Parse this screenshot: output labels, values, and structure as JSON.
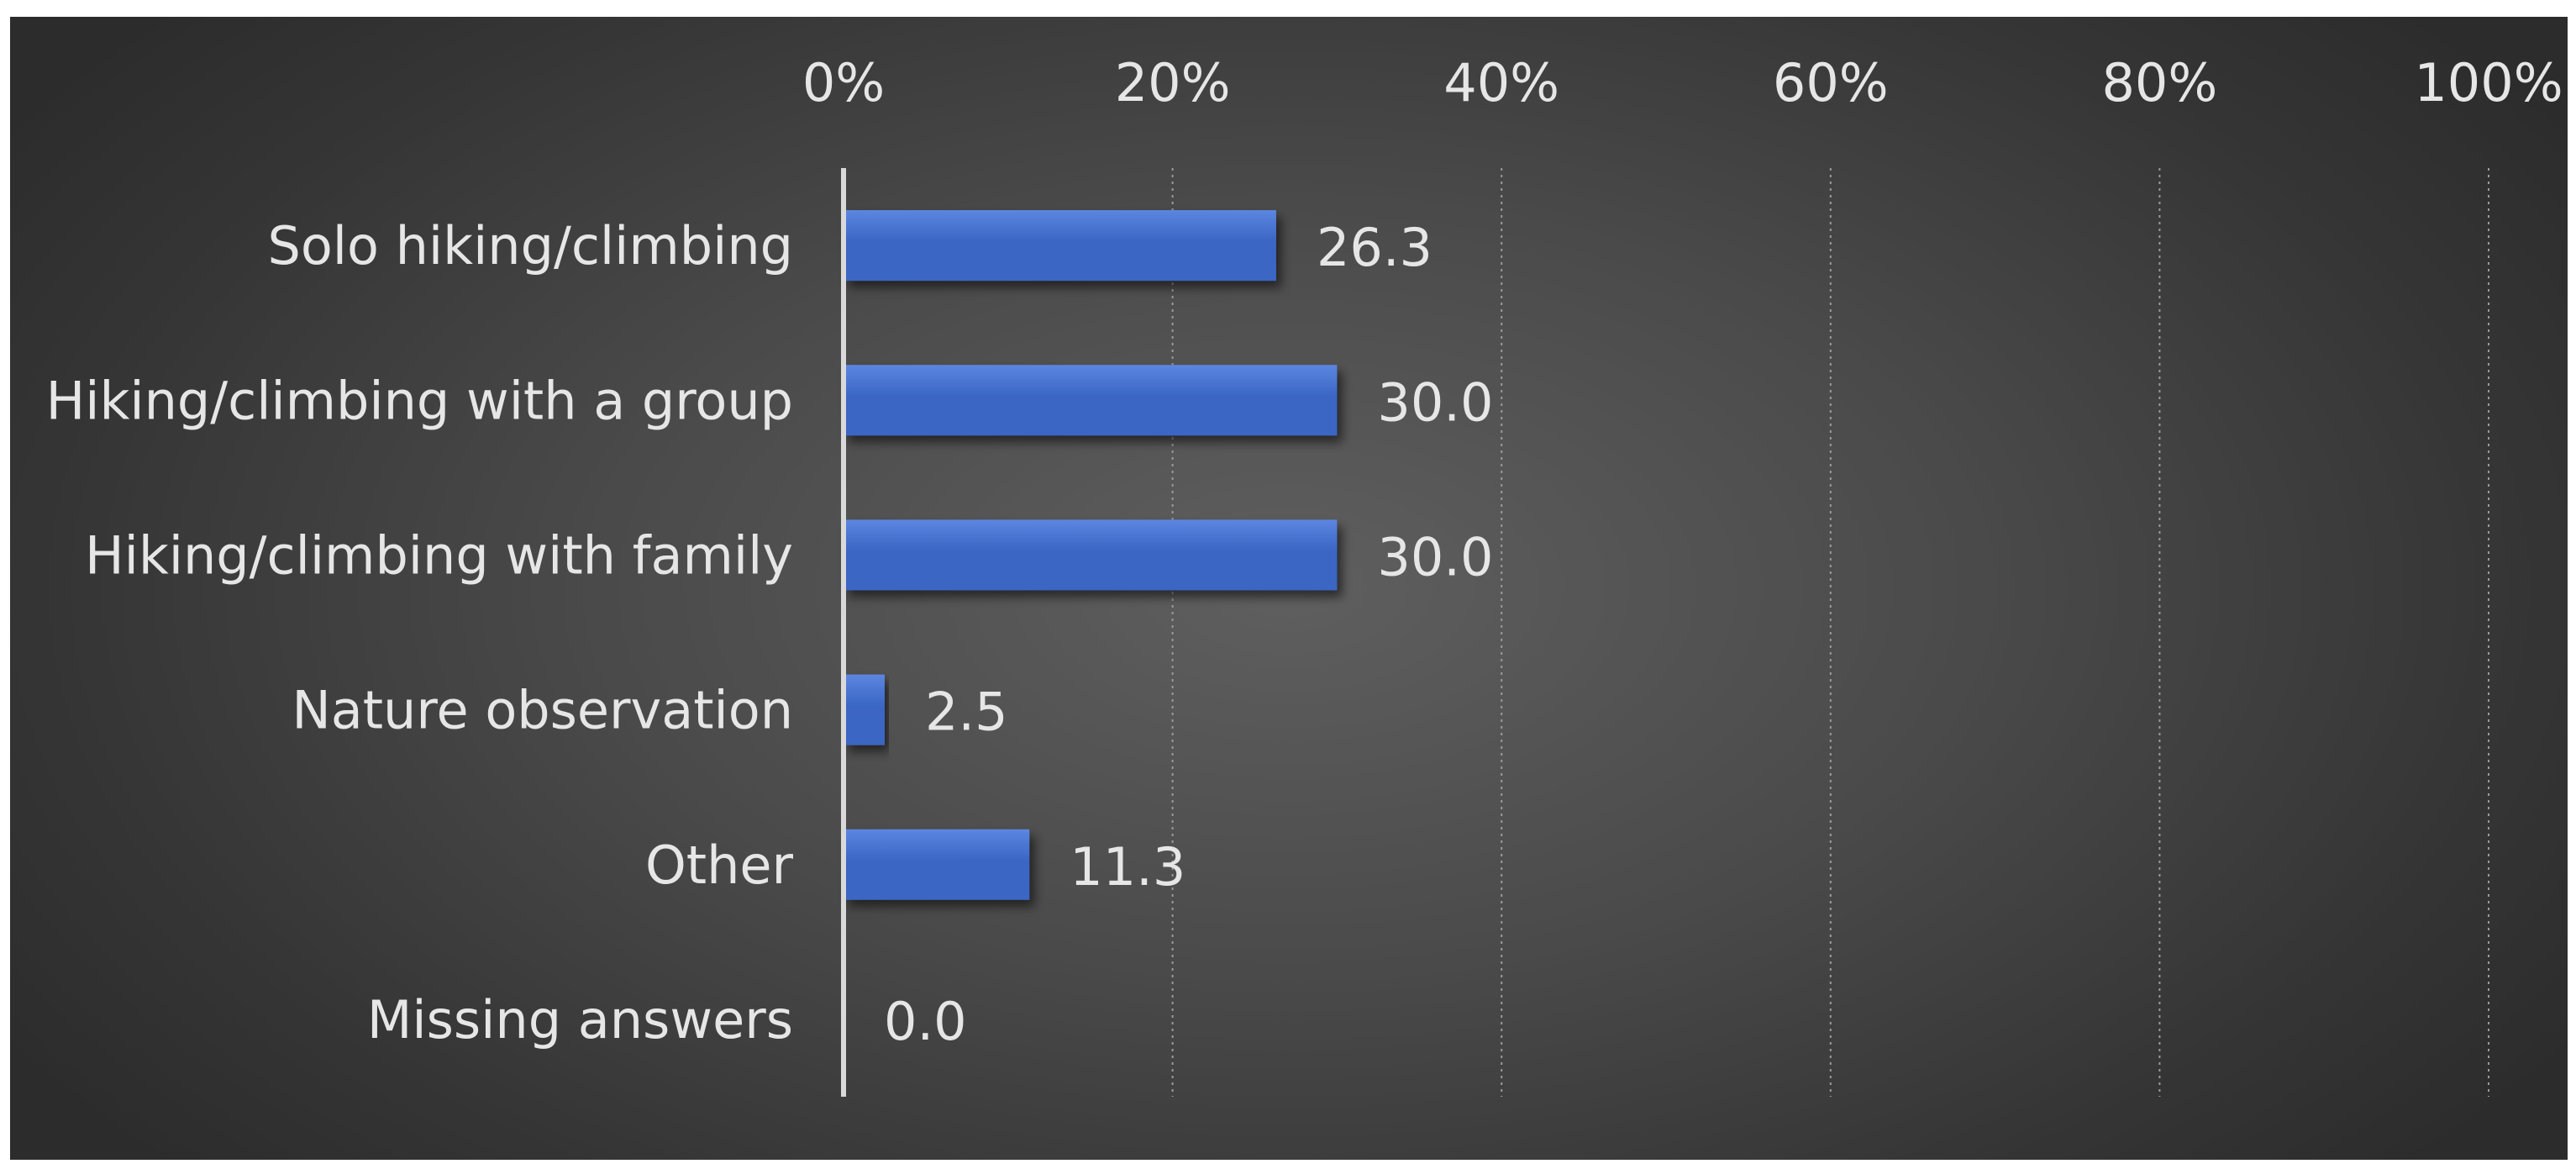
{
  "chart_data": {
    "type": "bar",
    "orientation": "horizontal",
    "categories": [
      "Solo hiking/climbing",
      "Hiking/climbing with a group",
      "Hiking/climbing with family",
      "Nature observation",
      "Other",
      "Missing answers"
    ],
    "values": [
      26.3,
      30.0,
      30.0,
      2.5,
      11.3,
      0.0
    ],
    "value_labels": [
      "26.3",
      "30.0",
      "30.0",
      "2.5",
      "11.3",
      "0.0"
    ],
    "x_ticks": [
      "0%",
      "20%",
      "40%",
      "60%",
      "80%",
      "100%"
    ],
    "xlim": [
      0,
      100
    ],
    "x_axis_position": "top",
    "grid": true,
    "legend": "none",
    "colors": {
      "bar": "#3a66c4",
      "bar_highlight": "#5c86e0",
      "text": "#e6e6e6",
      "gridline": "#9a9a9a",
      "background": "#4a4a4a"
    }
  }
}
